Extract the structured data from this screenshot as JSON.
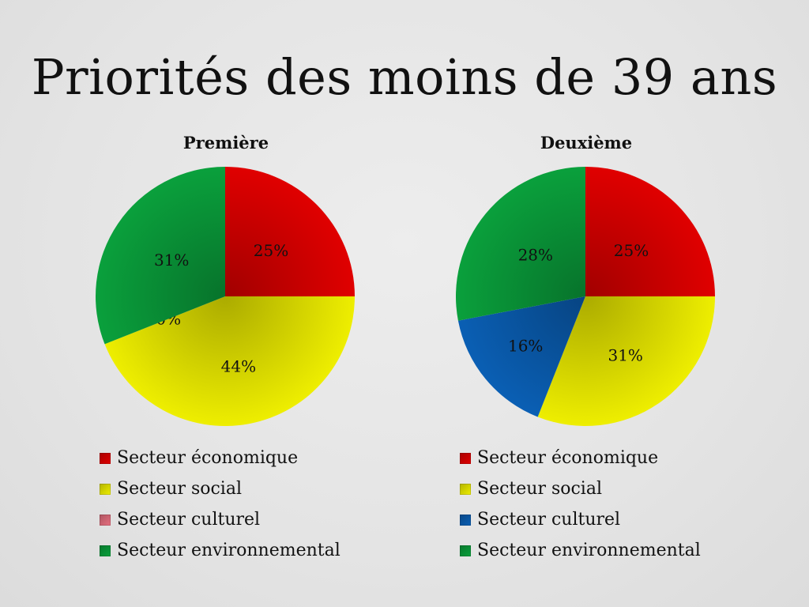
{
  "title": "Priorités des moins de 39 ans",
  "colors": {
    "economique": "#e00000",
    "social": "#eeee00",
    "culturel_left": "#e77080",
    "culturel_right": "#0a5fb4",
    "environnemental": "#0aa03c"
  },
  "chart_data": [
    {
      "type": "pie",
      "title": "Première",
      "categories": [
        "Secteur économique",
        "Secteur social",
        "Secteur culturel",
        "Secteur environnemental"
      ],
      "values": [
        25,
        44,
        0,
        31
      ],
      "labels": [
        "25%",
        "44%",
        "0%",
        "31%"
      ],
      "colors": [
        "#e00000",
        "#eeee00",
        "#e77080",
        "#0aa03c"
      ],
      "legend": "bottom"
    },
    {
      "type": "pie",
      "title": "Deuxième",
      "categories": [
        "Secteur économique",
        "Secteur social",
        "Secteur culturel",
        "Secteur environnemental"
      ],
      "values": [
        25,
        31,
        16,
        28
      ],
      "labels": [
        "25%",
        "31%",
        "16%",
        "28%"
      ],
      "colors": [
        "#e00000",
        "#eeee00",
        "#0a5fb4",
        "#0aa03c"
      ],
      "legend": "bottom"
    }
  ]
}
